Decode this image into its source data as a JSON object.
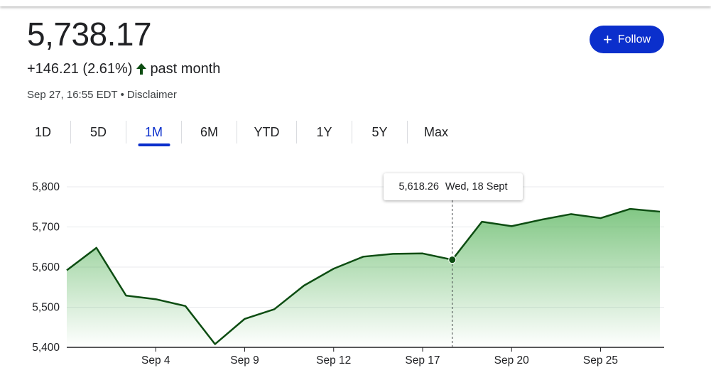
{
  "quote": {
    "price": "5,738.17",
    "change": "+146.21 (2.61%)",
    "period": "past month",
    "timestamp": "Sep 27, 16:55 EDT",
    "separator": "•",
    "disclaimer": "Disclaimer"
  },
  "follow_button": {
    "icon": "plus-icon",
    "label": "Follow"
  },
  "colors": {
    "accent": "#0b2fcc",
    "line": "#0d4d12",
    "fill": "#4caf50",
    "up_arrow": "#0d4d12"
  },
  "ranges": {
    "active": "1M",
    "items": [
      {
        "label": "1D"
      },
      {
        "label": "5D"
      },
      {
        "label": "1M"
      },
      {
        "label": "6M"
      },
      {
        "label": "YTD"
      },
      {
        "label": "1Y"
      },
      {
        "label": "5Y"
      },
      {
        "label": "Max"
      }
    ]
  },
  "tooltip": {
    "value": "5,618.26",
    "date": "Wed, 18 Sept"
  },
  "chart_data": {
    "type": "area",
    "ylim": [
      5400,
      5800
    ],
    "yticks": [
      5800,
      5700,
      5600,
      5500,
      5400
    ],
    "ytick_labels": [
      "5,800",
      "5,700",
      "5,600",
      "5,500",
      "5,400"
    ],
    "xtick_labels": [
      "Sep 4",
      "Sep 9",
      "Sep 12",
      "Sep 17",
      "Sep 20",
      "Sep 25"
    ],
    "xtick_positions": [
      3,
      6,
      9,
      12,
      15,
      18
    ],
    "highlight_index": 13,
    "grid": true,
    "series": [
      {
        "values": [
          5592,
          5648,
          5529,
          5520,
          5503,
          5408,
          5471,
          5495,
          5554,
          5596,
          5626,
          5633,
          5634,
          5618.26,
          5713,
          5702,
          5718,
          5732,
          5722,
          5745,
          5738.17
        ]
      }
    ]
  }
}
